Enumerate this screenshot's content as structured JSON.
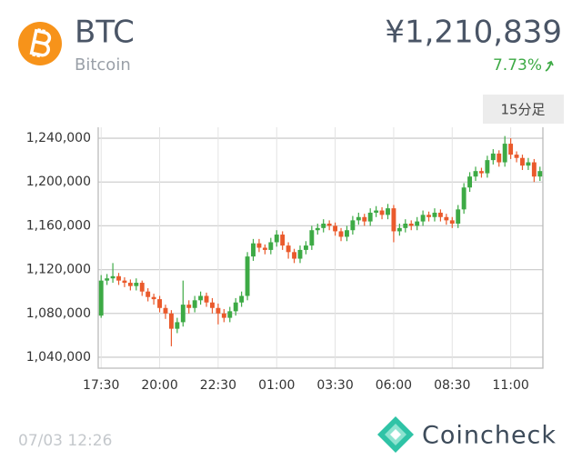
{
  "header": {
    "symbol": "BTC",
    "name": "Bitcoin",
    "price": "¥1,210,839",
    "change": "7.73%"
  },
  "interval_button": "15分足",
  "timestamp": "07/03 12:26",
  "brand": "Coincheck",
  "chart_data": {
    "type": "candlestick",
    "up_color": "#3daa45",
    "down_color": "#ea5a2c",
    "grid": true,
    "categories": [
      "17:30",
      null,
      null,
      null,
      null,
      null,
      null,
      null,
      null,
      null,
      "20:00",
      null,
      null,
      null,
      null,
      null,
      null,
      null,
      null,
      null,
      "22:30",
      null,
      null,
      null,
      null,
      null,
      null,
      null,
      null,
      null,
      "01:00",
      null,
      null,
      null,
      null,
      null,
      null,
      null,
      null,
      null,
      "03:30",
      null,
      null,
      null,
      null,
      null,
      null,
      null,
      null,
      null,
      "06:00",
      null,
      null,
      null,
      null,
      null,
      null,
      null,
      null,
      null,
      "08:30",
      null,
      null,
      null,
      null,
      null,
      null,
      null,
      null,
      null,
      "11:00",
      null,
      null,
      null,
      null,
      null
    ],
    "open": [
      1078000,
      1110000,
      1112000,
      1114000,
      1110000,
      1108000,
      1105000,
      1108000,
      1100000,
      1095000,
      1093000,
      1085000,
      1080000,
      1066000,
      1072000,
      1088000,
      1085000,
      1092000,
      1096000,
      1090000,
      1085000,
      1080000,
      1076000,
      1082000,
      1090000,
      1096000,
      1132000,
      1144000,
      1140000,
      1138000,
      1145000,
      1152000,
      1142000,
      1136000,
      1130000,
      1138000,
      1142000,
      1156000,
      1158000,
      1162000,
      1160000,
      1155000,
      1150000,
      1156000,
      1165000,
      1168000,
      1164000,
      1172000,
      1174000,
      1170000,
      1176000,
      1155000,
      1158000,
      1162000,
      1160000,
      1164000,
      1170000,
      1168000,
      1172000,
      1168000,
      1165000,
      1162000,
      1175000,
      1195000,
      1205000,
      1210000,
      1208000,
      1220000,
      1226000,
      1218000,
      1235000,
      1225000,
      1222000,
      1215000,
      1218000,
      1205000
    ],
    "high": [
      1115000,
      1116000,
      1126000,
      1117000,
      1113000,
      1111000,
      1112000,
      1110000,
      1103000,
      1098000,
      1096000,
      1088000,
      1083000,
      1076000,
      1110000,
      1092000,
      1096000,
      1100000,
      1099000,
      1094000,
      1089000,
      1084000,
      1086000,
      1094000,
      1100000,
      1136000,
      1148000,
      1148000,
      1143000,
      1149000,
      1156000,
      1155000,
      1145000,
      1139000,
      1142000,
      1146000,
      1160000,
      1162000,
      1166000,
      1165000,
      1163000,
      1158000,
      1160000,
      1169000,
      1172000,
      1171000,
      1176000,
      1178000,
      1177000,
      1180000,
      1179000,
      1162000,
      1166000,
      1165000,
      1168000,
      1174000,
      1173000,
      1176000,
      1175000,
      1171000,
      1168000,
      1179000,
      1199000,
      1209000,
      1214000,
      1213000,
      1224000,
      1230000,
      1229000,
      1242000,
      1240000,
      1228000,
      1225000,
      1222000,
      1221000,
      1214000
    ],
    "low": [
      1076000,
      1106000,
      1108000,
      1106000,
      1104000,
      1101000,
      1101000,
      1096000,
      1091000,
      1088000,
      1081000,
      1075000,
      1050000,
      1062000,
      1068000,
      1080000,
      1081000,
      1088000,
      1086000,
      1080000,
      1070000,
      1072000,
      1072000,
      1078000,
      1086000,
      1092000,
      1128000,
      1136000,
      1134000,
      1134000,
      1141000,
      1138000,
      1130000,
      1126000,
      1126000,
      1134000,
      1138000,
      1152000,
      1154000,
      1156000,
      1151000,
      1146000,
      1146000,
      1152000,
      1161000,
      1160000,
      1160000,
      1168000,
      1166000,
      1166000,
      1145000,
      1151000,
      1154000,
      1156000,
      1156000,
      1160000,
      1164000,
      1164000,
      1164000,
      1161000,
      1158000,
      1158000,
      1171000,
      1191000,
      1201000,
      1204000,
      1204000,
      1216000,
      1214000,
      1214000,
      1221000,
      1218000,
      1211000,
      1211000,
      1200000,
      1201000
    ],
    "close": [
      1110000,
      1112000,
      1114000,
      1110000,
      1108000,
      1105000,
      1108000,
      1100000,
      1095000,
      1093000,
      1085000,
      1080000,
      1066000,
      1072000,
      1088000,
      1085000,
      1092000,
      1096000,
      1090000,
      1085000,
      1080000,
      1076000,
      1082000,
      1090000,
      1096000,
      1132000,
      1144000,
      1140000,
      1138000,
      1145000,
      1152000,
      1142000,
      1136000,
      1130000,
      1138000,
      1142000,
      1156000,
      1158000,
      1162000,
      1160000,
      1155000,
      1150000,
      1156000,
      1165000,
      1168000,
      1164000,
      1172000,
      1174000,
      1170000,
      1176000,
      1155000,
      1158000,
      1162000,
      1160000,
      1164000,
      1170000,
      1168000,
      1172000,
      1168000,
      1165000,
      1162000,
      1175000,
      1195000,
      1205000,
      1210000,
      1208000,
      1220000,
      1226000,
      1218000,
      1235000,
      1225000,
      1222000,
      1215000,
      1218000,
      1205000,
      1210000
    ],
    "ylim": [
      1030000,
      1250000
    ],
    "yticks": [
      {
        "value": 1040000,
        "label": "1,040,000"
      },
      {
        "value": 1080000,
        "label": "1,080,000"
      },
      {
        "value": 1120000,
        "label": "1,120,000"
      },
      {
        "value": 1160000,
        "label": "1,160,000"
      },
      {
        "value": 1200000,
        "label": "1,200,000"
      },
      {
        "value": 1240000,
        "label": "1,240,000"
      }
    ]
  }
}
